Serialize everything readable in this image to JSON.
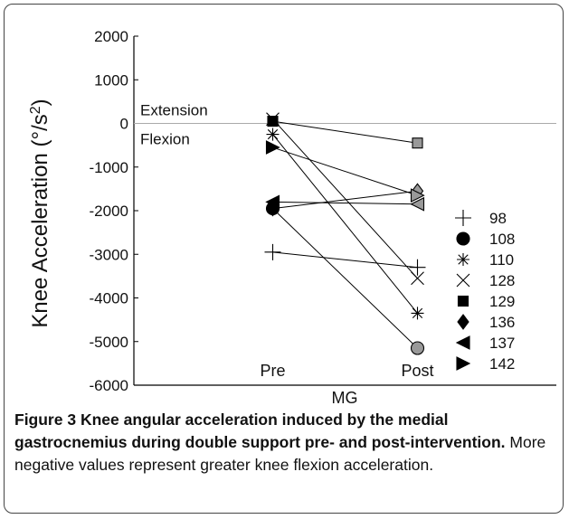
{
  "chart_data": {
    "type": "line",
    "ylabel": {
      "text": "Knee Acceleration  (°/s",
      "sup": "2",
      "end": ")"
    },
    "xlabel": "MG",
    "categories": [
      "Pre",
      "Post"
    ],
    "ylim": [
      -6000,
      2000
    ],
    "yticks": [
      -6000,
      -5000,
      -4000,
      -3000,
      -2000,
      -1000,
      0,
      1000,
      2000
    ],
    "zero_line": true,
    "annotations": [
      "Extension",
      "Flexion"
    ],
    "marker_fill": [
      "#000000",
      "#999999"
    ],
    "series": [
      {
        "name": "98",
        "marker": "plus",
        "color": "#000000",
        "values": [
          -2950,
          -3300
        ]
      },
      {
        "name": "108",
        "marker": "circle",
        "color": "#000000",
        "values": [
          -1950,
          -5150
        ]
      },
      {
        "name": "110",
        "marker": "asterisk",
        "color": "#000000",
        "values": [
          -250,
          -4350
        ]
      },
      {
        "name": "128",
        "marker": "x",
        "color": "#000000",
        "values": [
          100,
          -3550
        ]
      },
      {
        "name": "129",
        "marker": "square",
        "color": "#000000",
        "values": [
          50,
          -450
        ]
      },
      {
        "name": "136",
        "marker": "diamond",
        "color": "#000000",
        "values": [
          -1950,
          -1550
        ]
      },
      {
        "name": "137",
        "marker": "triangle-left",
        "color": "#000000",
        "values": [
          -1800,
          -1850
        ]
      },
      {
        "name": "142",
        "marker": "triangle-right",
        "color": "#000000",
        "values": [
          -550,
          -1650
        ]
      }
    ]
  },
  "caption": {
    "label": "Figure 3",
    "title": "Knee angular acceleration induced by the medial gastrocnemius during double support pre- and post-intervention.",
    "text": "More negative values represent greater knee flexion acceleration."
  }
}
